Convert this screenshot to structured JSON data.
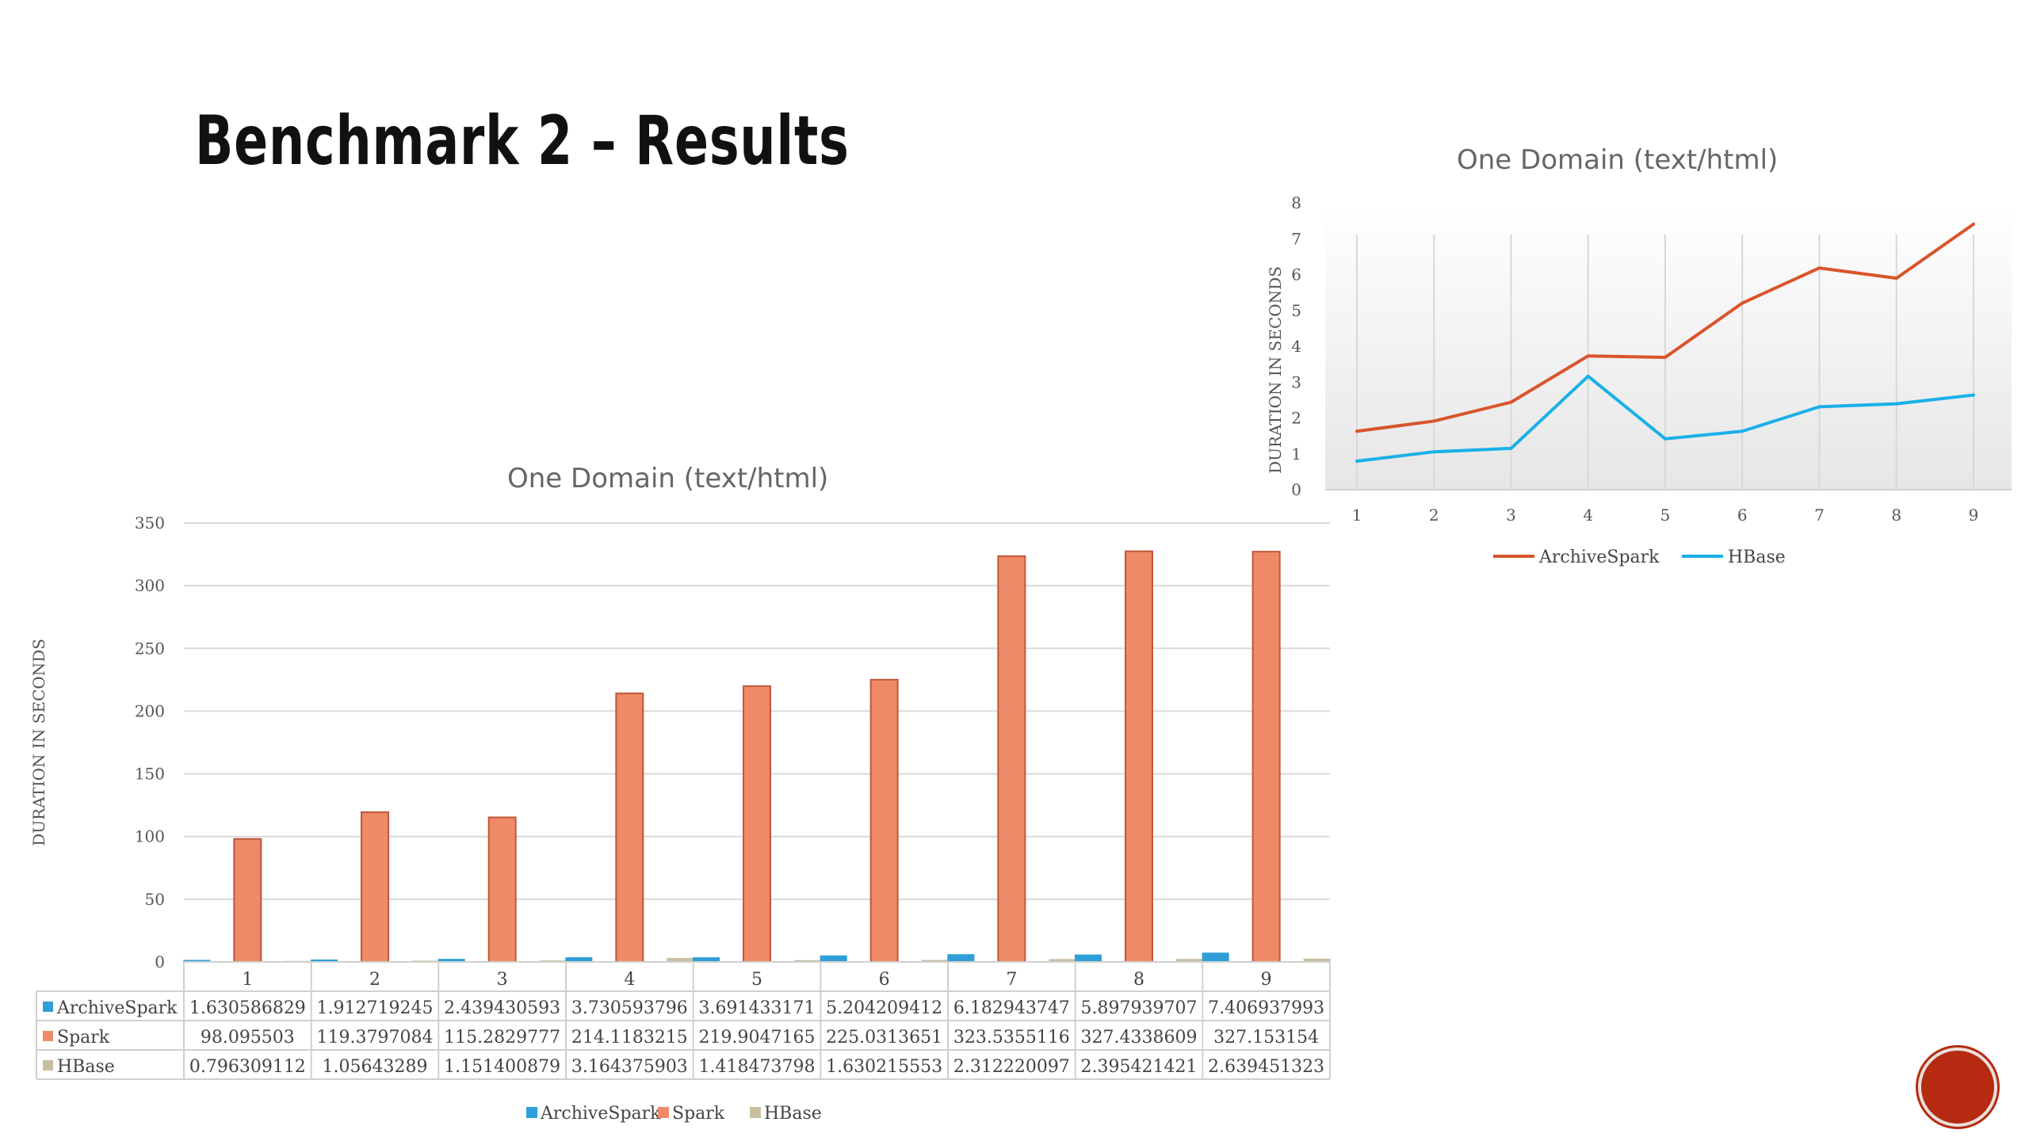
{
  "slide": {
    "title": "Benchmark 2 – Results"
  },
  "colors": {
    "archivespark": "#2e9fd8",
    "spark": "#ee8a68",
    "hbase": "#c9bfa0",
    "line_archivespark": "#d9542b",
    "line_hbase": "#1ab0e8"
  },
  "chart_data": [
    {
      "type": "bar",
      "title": "One Domain (text/html)",
      "ylabel": "DURATION IN SECONDS",
      "xlabel": "",
      "ylim": [
        0,
        350
      ],
      "yticks": [
        0,
        50,
        100,
        150,
        200,
        250,
        300,
        350
      ],
      "categories": [
        "1",
        "2",
        "3",
        "4",
        "5",
        "6",
        "7",
        "8",
        "9"
      ],
      "series": [
        {
          "name": "ArchiveSpark",
          "values": [
            1.630586829,
            1.912719245,
            2.439430593,
            3.730593796,
            3.691433171,
            5.204209412,
            6.182943747,
            5.897939707,
            7.406937993
          ]
        },
        {
          "name": "Spark",
          "values": [
            98.095503,
            119.3797084,
            115.2829777,
            214.1183215,
            219.9047165,
            225.0313651,
            323.5355116,
            327.4338609,
            327.153154
          ]
        },
        {
          "name": "HBase",
          "values": [
            0.796309112,
            1.05643289,
            1.151400879,
            3.164375903,
            1.418473798,
            1.630215553,
            2.312220097,
            2.395421421,
            2.639451323
          ]
        }
      ],
      "table": {
        "rows": [
          {
            "name": "ArchiveSpark",
            "cells": [
              "1.630586829",
              "1.912719245",
              "2.439430593",
              "3.730593796",
              "3.691433171",
              "5.204209412",
              "6.182943747",
              "5.897939707",
              "7.406937993"
            ]
          },
          {
            "name": "Spark",
            "cells": [
              "98.095503",
              "119.3797084",
              "115.2829777",
              "214.1183215",
              "219.9047165",
              "225.0313651",
              "323.5355116",
              "327.4338609",
              "327.153154"
            ]
          },
          {
            "name": "HBase",
            "cells": [
              "0.796309112",
              "1.05643289",
              "1.151400879",
              "3.164375903",
              "1.418473798",
              "1.630215553",
              "2.312220097",
              "2.395421421",
              "2.639451323"
            ]
          }
        ]
      },
      "legend": [
        "ArchiveSpark",
        "Spark",
        "HBase"
      ],
      "legend_position": "bottom",
      "grid": true
    },
    {
      "type": "line",
      "title": "One Domain (text/html)",
      "ylabel": "DURATION IN SECONDS",
      "xlabel": "",
      "ylim": [
        0,
        8
      ],
      "yticks": [
        0,
        1,
        2,
        3,
        4,
        5,
        6,
        7,
        8
      ],
      "categories": [
        "1",
        "2",
        "3",
        "4",
        "5",
        "6",
        "7",
        "8",
        "9"
      ],
      "series": [
        {
          "name": "ArchiveSpark",
          "values": [
            1.630586829,
            1.912719245,
            2.439430593,
            3.730593796,
            3.691433171,
            5.204209412,
            6.182943747,
            5.897939707,
            7.406937993
          ]
        },
        {
          "name": "HBase",
          "values": [
            0.796309112,
            1.05643289,
            1.151400879,
            3.164375903,
            1.418473798,
            1.630215553,
            2.312220097,
            2.395421421,
            2.639451323
          ]
        }
      ],
      "legend": [
        "ArchiveSpark",
        "HBase"
      ],
      "legend_position": "bottom",
      "grid": true
    }
  ]
}
